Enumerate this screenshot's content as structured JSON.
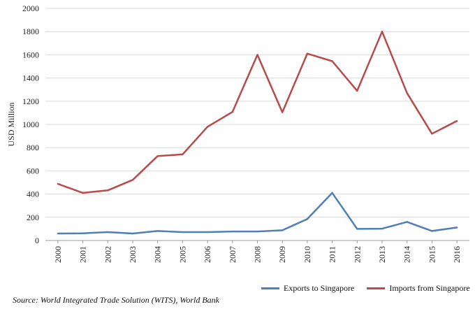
{
  "chart_data": {
    "type": "line",
    "x": [
      "2000",
      "2001",
      "2002",
      "2003",
      "2004",
      "2005",
      "2006",
      "2007",
      "2008",
      "2009",
      "2010",
      "2011",
      "2012",
      "2013",
      "2014",
      "2015",
      "2016"
    ],
    "series": [
      {
        "name": "Exports to Singapore",
        "color": "#4f7fb4",
        "values": [
          60,
          62,
          72,
          60,
          82,
          72,
          72,
          78,
          78,
          88,
          185,
          410,
          100,
          102,
          160,
          82,
          112
        ]
      },
      {
        "name": "Imports from Singapore",
        "color": "#b84a4a",
        "values": [
          488,
          410,
          432,
          522,
          728,
          742,
          980,
          1108,
          1600,
          1105,
          1610,
          1545,
          1290,
          1800,
          1270,
          920,
          1030
        ]
      }
    ],
    "ylabel": "USD Million",
    "ylim": [
      0,
      2000
    ],
    "yticks": [
      "0",
      "200",
      "400",
      "600",
      "800",
      "1000",
      "1200",
      "1400",
      "1600",
      "1800",
      "2000"
    ],
    "grid": true,
    "legend_position": "bottom-right"
  },
  "source": "Source: World Integrated Trade Solution (WITS), World Bank"
}
